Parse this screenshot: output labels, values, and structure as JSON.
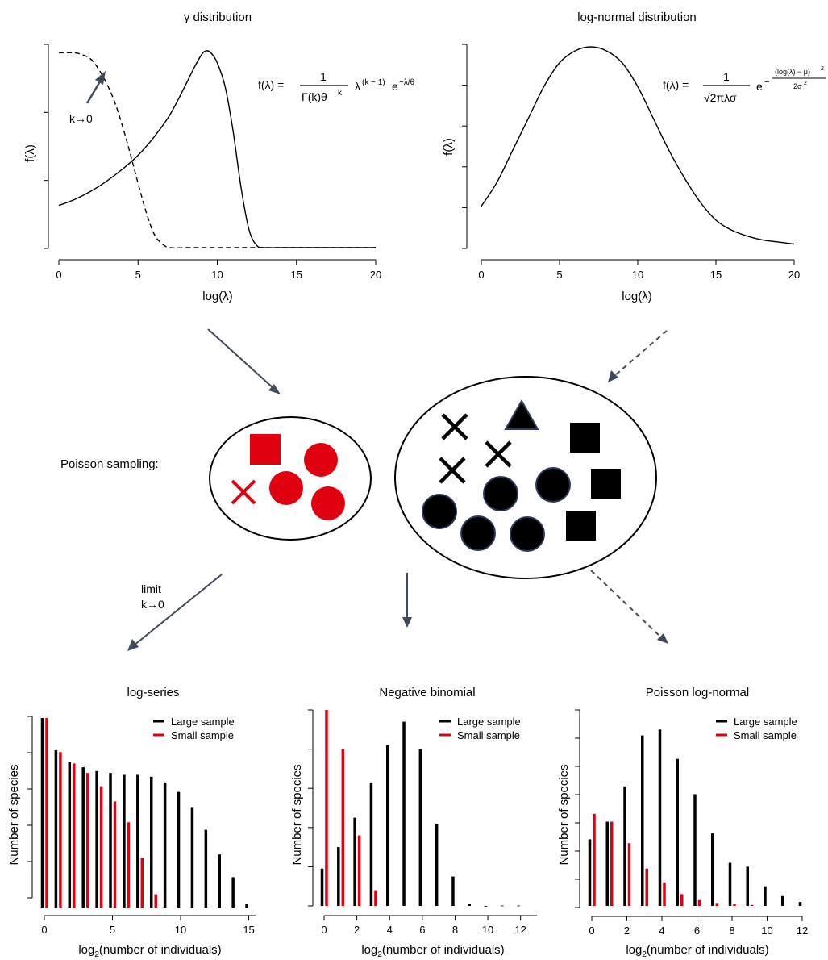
{
  "colors": {
    "black": "#000000",
    "red": "#e0000f",
    "arrow": "#3f4a5c",
    "marker_edge": "#2b3a5c"
  },
  "density_panels": [
    {
      "title": "γ distribution",
      "xlabel": "log(λ)",
      "ylabel": "f(λ)",
      "formula": {
        "lhs": "f(λ) =",
        "num": "1",
        "den_a": "Γ(k)θ",
        "den_sup": "k",
        "tail_base": "λ",
        "tail_sup1": "(k − 1)",
        "tail_mid": "e",
        "tail_sup2": "−λ/θ"
      },
      "annotation": "k→0"
    },
    {
      "title": "log-normal distribution",
      "xlabel": "log(λ)",
      "ylabel": "f(λ)",
      "formula": {
        "lhs": "f(λ) =",
        "num": "1",
        "den": "√2πλσ",
        "e": "e",
        "exp_num": "(log(λ) − μ)",
        "exp_num_sup": "2",
        "exp_den": "2σ",
        "exp_den_sup": "2",
        "minus": "−"
      }
    }
  ],
  "middle": {
    "label": "Poisson sampling:",
    "limit_label_1": "limit",
    "limit_label_2": "k→0"
  },
  "chart_data": [
    {
      "type": "line",
      "title": "γ distribution",
      "xlabel": "log(λ)",
      "ylabel": "f(λ)",
      "xlim": [
        0,
        20
      ],
      "xticks": [
        "0",
        "5",
        "10",
        "15",
        "20"
      ],
      "series": [
        {
          "style": "solid",
          "x": [
            0,
            1,
            2,
            3,
            4,
            5,
            6,
            7,
            8,
            8.5,
            9,
            9.3,
            9.6,
            10,
            10.5,
            11,
            11.5,
            12,
            12.5,
            13,
            14,
            16,
            18,
            20
          ],
          "y": [
            0.21,
            0.24,
            0.28,
            0.33,
            0.39,
            0.46,
            0.55,
            0.66,
            0.81,
            0.89,
            0.96,
            0.98,
            0.97,
            0.92,
            0.8,
            0.58,
            0.3,
            0.09,
            0.01,
            0,
            0,
            0,
            0,
            0
          ]
        },
        {
          "style": "dashed",
          "x": [
            0,
            1,
            1.5,
            2,
            2.5,
            3,
            3.5,
            4,
            4.5,
            5,
            5.5,
            6,
            6.5,
            7,
            8,
            10,
            15,
            20
          ],
          "y": [
            0.97,
            0.97,
            0.96,
            0.94,
            0.89,
            0.82,
            0.73,
            0.61,
            0.47,
            0.32,
            0.18,
            0.07,
            0.02,
            0,
            0,
            0,
            0,
            0
          ]
        }
      ]
    },
    {
      "type": "line",
      "title": "log-normal distribution",
      "xlabel": "log(λ)",
      "ylabel": "f(λ)",
      "xlim": [
        0,
        20
      ],
      "xticks": [
        "0",
        "5",
        "10",
        "15",
        "20"
      ],
      "series": [
        {
          "style": "solid",
          "x": [
            0,
            1,
            2,
            3,
            4,
            5,
            6,
            7,
            8,
            9,
            10,
            11,
            12,
            13,
            14,
            15,
            16,
            17,
            18,
            19,
            20
          ],
          "y": [
            0.2,
            0.32,
            0.48,
            0.64,
            0.8,
            0.92,
            0.98,
            1.0,
            0.98,
            0.92,
            0.8,
            0.64,
            0.48,
            0.34,
            0.22,
            0.13,
            0.08,
            0.05,
            0.03,
            0.02,
            0.01
          ]
        }
      ]
    },
    {
      "type": "bar",
      "title": "log-series",
      "xlabel": "log2(number of individuals)",
      "ylabel": "Number of species",
      "xlim": [
        0,
        15.5
      ],
      "xticks": [
        "0",
        "5",
        "10",
        "15"
      ],
      "legend": "top-right",
      "series": [
        {
          "name": "Large sample",
          "x": [
            0,
            1,
            2,
            3,
            4,
            5,
            6,
            7,
            8,
            9,
            10,
            11,
            12,
            13,
            14,
            15
          ],
          "values": [
            1.0,
            0.83,
            0.77,
            0.74,
            0.72,
            0.71,
            0.7,
            0.7,
            0.69,
            0.66,
            0.61,
            0.53,
            0.41,
            0.28,
            0.16,
            0.02
          ]
        },
        {
          "name": "Small sample",
          "x": [
            0,
            1,
            2,
            3,
            4,
            5,
            6,
            7,
            8
          ],
          "values": [
            1.0,
            0.82,
            0.76,
            0.71,
            0.64,
            0.56,
            0.45,
            0.26,
            0.07
          ]
        }
      ]
    },
    {
      "type": "bar",
      "title": "Negative binomial",
      "xlabel": "log2(number of individuals)",
      "ylabel": "Number of species",
      "xlim": [
        0,
        13
      ],
      "xticks": [
        "0",
        "2",
        "4",
        "6",
        "8",
        "10",
        "12"
      ],
      "legend": "top-right",
      "series": [
        {
          "name": "Large sample",
          "x": [
            0,
            1,
            2,
            3,
            4,
            5,
            6,
            7,
            8,
            9,
            10,
            11,
            12
          ],
          "values": [
            0.19,
            0.3,
            0.45,
            0.63,
            0.82,
            0.94,
            0.8,
            0.42,
            0.15,
            0.01,
            0,
            0.002,
            0.002
          ]
        },
        {
          "name": "Small sample",
          "x": [
            0,
            1,
            2,
            3
          ],
          "values": [
            1.0,
            0.8,
            0.36,
            0.08
          ]
        }
      ]
    },
    {
      "type": "bar",
      "title": "Poisson log-normal",
      "xlabel": "log2(number of individuals)",
      "ylabel": "Number of species",
      "xlim": [
        0,
        12
      ],
      "xticks": [
        "0",
        "2",
        "4",
        "6",
        "8",
        "10",
        "12"
      ],
      "legend": "top-right",
      "series": [
        {
          "name": "Large sample",
          "x": [
            0,
            1,
            2,
            3,
            4,
            5,
            6,
            7,
            8,
            9,
            10,
            11,
            12
          ],
          "values": [
            0.34,
            0.43,
            0.61,
            0.87,
            0.9,
            0.75,
            0.57,
            0.37,
            0.22,
            0.2,
            0.1,
            0.05,
            0.02
          ]
        },
        {
          "name": "Small sample",
          "x": [
            0,
            1,
            2,
            3,
            4,
            5,
            6,
            7,
            8,
            9
          ],
          "values": [
            0.47,
            0.43,
            0.32,
            0.19,
            0.12,
            0.06,
            0.03,
            0.015,
            0.01,
            0.005
          ]
        }
      ]
    }
  ],
  "legend": {
    "large": "Large sample",
    "small": "Small sample"
  },
  "ellipses": [
    {
      "name": "small-sample-community",
      "markers": [
        {
          "shape": "square",
          "color": "red"
        },
        {
          "shape": "circle",
          "color": "red"
        },
        {
          "shape": "cross",
          "color": "red"
        },
        {
          "shape": "circle",
          "color": "red"
        },
        {
          "shape": "circle",
          "color": "red"
        }
      ]
    },
    {
      "name": "large-sample-community",
      "markers": [
        {
          "shape": "cross"
        },
        {
          "shape": "triangle"
        },
        {
          "shape": "square"
        },
        {
          "shape": "cross"
        },
        {
          "shape": "cross"
        },
        {
          "shape": "circle"
        },
        {
          "shape": "circle"
        },
        {
          "shape": "square"
        },
        {
          "shape": "circle"
        },
        {
          "shape": "circle"
        },
        {
          "shape": "circle"
        },
        {
          "shape": "square"
        }
      ]
    }
  ]
}
